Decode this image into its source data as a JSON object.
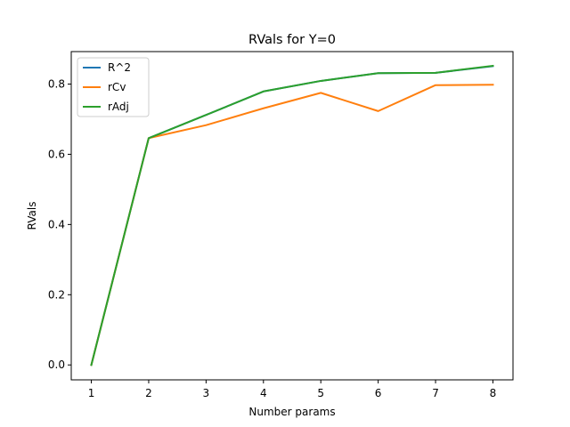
{
  "chart_data": {
    "type": "line",
    "title": "RVals for Y=0",
    "xlabel": "Number params",
    "ylabel": "RVals",
    "x": [
      1,
      2,
      3,
      4,
      5,
      6,
      7,
      8
    ],
    "xlim": [
      0.65,
      8.35
    ],
    "ylim": [
      -0.0425,
      0.8925
    ],
    "xticks": [
      "1",
      "2",
      "3",
      "4",
      "5",
      "6",
      "7",
      "8"
    ],
    "yticks": [
      "0.0",
      "0.2",
      "0.4",
      "0.6",
      "0.8"
    ],
    "ytick_values": [
      0.0,
      0.2,
      0.4,
      0.6,
      0.8
    ],
    "grid": false,
    "legend_position": "top-left",
    "series": [
      {
        "name": "R^2",
        "color": "#1f77b4",
        "values": [
          0.0,
          0.646,
          0.712,
          0.779,
          0.809,
          0.831,
          0.832,
          0.851
        ]
      },
      {
        "name": "rCv",
        "color": "#ff7f0e",
        "values": [
          0.0,
          0.646,
          0.683,
          0.731,
          0.775,
          0.723,
          0.797,
          0.798
        ]
      },
      {
        "name": "rAdj",
        "color": "#2ca02c",
        "values": [
          0.0,
          0.646,
          0.712,
          0.779,
          0.809,
          0.831,
          0.832,
          0.852
        ]
      }
    ]
  }
}
